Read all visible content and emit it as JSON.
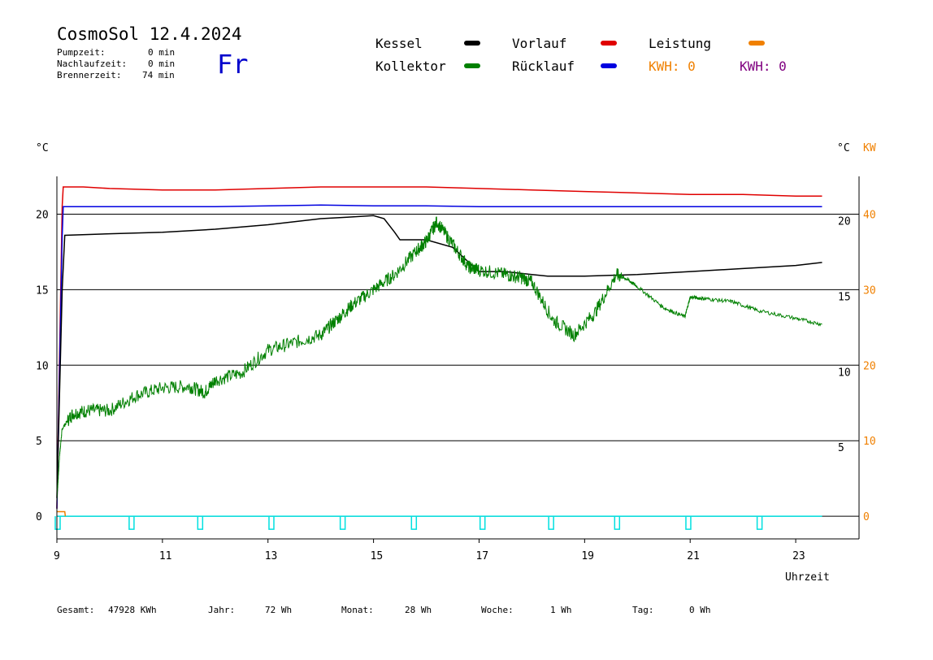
{
  "header": {
    "title": "CosmoSol 12.4.2024",
    "day": "Fr",
    "stats": [
      {
        "label": "Pumpzeit:",
        "value": "0 min"
      },
      {
        "label": "Nachlaufzeit:",
        "value": "0 min"
      },
      {
        "label": "Brennerzeit:",
        "value": "74 min"
      }
    ]
  },
  "legend": {
    "kessel": {
      "label": "Kessel",
      "color": "#000000"
    },
    "kollektor": {
      "label": "Kollektor",
      "color": "#008000"
    },
    "vorlauf": {
      "label": "Vorlauf",
      "color": "#e00000"
    },
    "ruecklauf": {
      "label": "Rücklauf",
      "color": "#0000e0"
    },
    "leistung": {
      "label": "Leistung",
      "color": "#f08000"
    },
    "kwh1": {
      "label": "KWH: 0",
      "color": "#f08000"
    },
    "kwh2": {
      "label": "KWH: 0",
      "color": "#800080"
    }
  },
  "footer": {
    "gesamt_label": "Gesamt:",
    "gesamt_value": "47928 KWh",
    "jahr_label": "Jahr:",
    "jahr_value": "72 Wh",
    "monat_label": "Monat:",
    "monat_value": "28 Wh",
    "woche_label": "Woche:",
    "woche_value": "1 Wh",
    "tag_label": "Tag:",
    "tag_value": "0 Wh"
  },
  "chart_data": {
    "type": "line",
    "xlabel": "Uhrzeit",
    "y_left_unit": "°C",
    "y_right_unit": "°C",
    "y_power_unit": "KW",
    "xlim": [
      9,
      24.2
    ],
    "ylim_left": [
      -1.5,
      22.5
    ],
    "x_ticks": [
      9,
      11,
      13,
      15,
      17,
      19,
      21,
      23
    ],
    "y_left_ticks": [
      0,
      5,
      10,
      15,
      20
    ],
    "y_right_ticks": [
      5,
      10,
      15,
      20
    ],
    "y_power_ticks": [
      0,
      10,
      20,
      30,
      40
    ],
    "series": [
      {
        "name": "Vorlauf",
        "color": "#e00000",
        "x": [
          9.0,
          9.1,
          9.12,
          9.5,
          10.0,
          11.0,
          12.0,
          13.0,
          14.0,
          15.0,
          16.0,
          17.0,
          18.0,
          19.0,
          20.0,
          21.0,
          22.0,
          23.0,
          23.5
        ],
        "y": [
          0.5,
          20.5,
          21.8,
          21.8,
          21.7,
          21.6,
          21.6,
          21.7,
          21.8,
          21.8,
          21.8,
          21.7,
          21.6,
          21.5,
          21.4,
          21.3,
          21.3,
          21.2,
          21.2
        ]
      },
      {
        "name": "Rücklauf",
        "color": "#0000e0",
        "x": [
          9.0,
          9.1,
          9.12,
          10.0,
          12.0,
          14.0,
          15.0,
          16.0,
          17.0,
          20.0,
          22.0,
          23.5
        ],
        "y": [
          0.5,
          18.5,
          20.5,
          20.5,
          20.5,
          20.6,
          20.55,
          20.55,
          20.5,
          20.5,
          20.5,
          20.5
        ]
      },
      {
        "name": "Kessel",
        "color": "#000000",
        "x": [
          9.0,
          9.1,
          9.15,
          10.0,
          11.0,
          12.0,
          13.0,
          14.0,
          14.5,
          15.0,
          15.2,
          15.4,
          15.5,
          16.0,
          16.5,
          16.9,
          17.0,
          17.5,
          18.0,
          18.3,
          19.0,
          20.0,
          21.0,
          22.0,
          23.0,
          23.5
        ],
        "y": [
          1.2,
          15.0,
          18.6,
          18.7,
          18.8,
          19.0,
          19.3,
          19.7,
          19.8,
          19.9,
          19.7,
          18.8,
          18.3,
          18.3,
          17.8,
          16.5,
          16.2,
          16.2,
          16.0,
          15.9,
          15.9,
          16.0,
          16.2,
          16.4,
          16.6,
          16.8
        ]
      },
      {
        "name": "Kollektor",
        "color": "#008000",
        "x": [
          9.0,
          9.05,
          9.1,
          9.3,
          9.6,
          10.0,
          10.5,
          11.0,
          11.5,
          11.8,
          12.0,
          12.5,
          13.0,
          13.5,
          14.0,
          14.3,
          14.6,
          15.0,
          15.4,
          15.8,
          16.0,
          16.2,
          16.5,
          16.8,
          17.0,
          17.5,
          17.8,
          18.0,
          18.4,
          18.8,
          19.2,
          19.6,
          19.8,
          20.0,
          20.5,
          20.9,
          21.0,
          21.3,
          21.8,
          22.3,
          23.0,
          23.5
        ],
        "y": [
          1.0,
          4.0,
          5.8,
          6.8,
          7.0,
          7.0,
          8.0,
          8.5,
          8.6,
          8.2,
          9.0,
          9.5,
          11.0,
          11.5,
          12.0,
          13.0,
          14.0,
          15.0,
          16.0,
          17.5,
          18.2,
          19.5,
          18.0,
          16.5,
          16.3,
          16.0,
          15.8,
          15.5,
          13.0,
          12.0,
          13.5,
          16.0,
          15.7,
          15.2,
          13.8,
          13.2,
          14.5,
          14.4,
          14.2,
          13.6,
          13.1,
          12.7
        ]
      },
      {
        "name": "Leistung",
        "color": "#f08000",
        "x": [
          9.0,
          9.15,
          9.16
        ],
        "y": [
          0.3,
          0.3,
          0.0
        ]
      }
    ],
    "pump_pulses_x": [
      9.0,
      10.4,
      11.7,
      13.05,
      14.4,
      15.75,
      17.05,
      18.35,
      19.6,
      20.95,
      22.3
    ],
    "pump_color": "#00e0e0",
    "grid_y": [
      0,
      5,
      10,
      15,
      20
    ]
  }
}
